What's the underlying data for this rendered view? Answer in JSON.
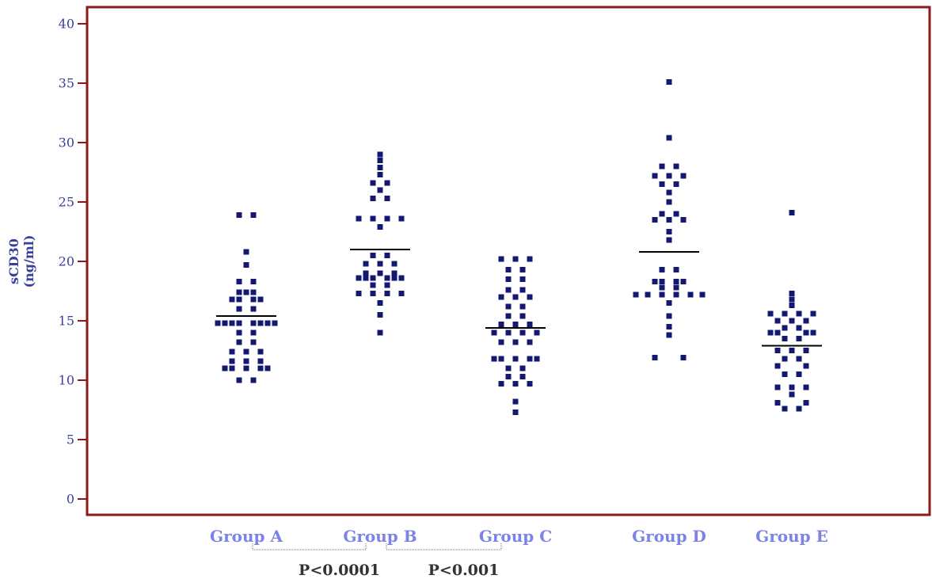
{
  "colors": {
    "frame": "#8b1a1a",
    "point": "#141870",
    "axis_text": "#3a3f9c",
    "category_text": "#7b83e6",
    "bracket": "#888888",
    "pvalue_text": "#333333",
    "median_line": "#000000"
  },
  "chart_data": {
    "type": "scatter",
    "ylabel_lines": [
      "sCD30",
      "(ng/ml)"
    ],
    "ylim": [
      0,
      40
    ],
    "yticks": [
      0,
      5,
      10,
      15,
      20,
      25,
      30,
      35,
      40
    ],
    "categories": [
      "Group A",
      "Group B",
      "Group C",
      "Group D",
      "Group E"
    ],
    "grid": false,
    "series": [
      {
        "category": "Group A",
        "median": 15.4,
        "points": [
          {
            "x": -0.3,
            "y": 23.9
          },
          {
            "x": 0.3,
            "y": 23.9
          },
          {
            "x": 0.0,
            "y": 20.8
          },
          {
            "x": 0.0,
            "y": 19.7
          },
          {
            "x": -0.3,
            "y": 18.3
          },
          {
            "x": 0.3,
            "y": 18.3
          },
          {
            "x": -0.3,
            "y": 17.4
          },
          {
            "x": 0.0,
            "y": 17.4
          },
          {
            "x": 0.3,
            "y": 17.4
          },
          {
            "x": -0.6,
            "y": 16.8
          },
          {
            "x": -0.3,
            "y": 16.8
          },
          {
            "x": 0.3,
            "y": 16.8
          },
          {
            "x": 0.6,
            "y": 16.8
          },
          {
            "x": -0.3,
            "y": 16.0
          },
          {
            "x": 0.3,
            "y": 16.0
          },
          {
            "x": -1.2,
            "y": 14.8
          },
          {
            "x": -0.9,
            "y": 14.8
          },
          {
            "x": -0.6,
            "y": 14.8
          },
          {
            "x": -0.3,
            "y": 14.8
          },
          {
            "x": 0.3,
            "y": 14.8
          },
          {
            "x": 0.6,
            "y": 14.8
          },
          {
            "x": 0.9,
            "y": 14.8
          },
          {
            "x": 1.2,
            "y": 14.8
          },
          {
            "x": -0.3,
            "y": 14.0
          },
          {
            "x": 0.3,
            "y": 14.0
          },
          {
            "x": -0.3,
            "y": 13.2
          },
          {
            "x": 0.3,
            "y": 13.2
          },
          {
            "x": -0.6,
            "y": 12.4
          },
          {
            "x": 0.0,
            "y": 12.4
          },
          {
            "x": 0.6,
            "y": 12.4
          },
          {
            "x": -0.6,
            "y": 11.6
          },
          {
            "x": 0.0,
            "y": 11.6
          },
          {
            "x": 0.6,
            "y": 11.6
          },
          {
            "x": -0.9,
            "y": 11.0
          },
          {
            "x": -0.6,
            "y": 11.0
          },
          {
            "x": 0.0,
            "y": 11.0
          },
          {
            "x": 0.6,
            "y": 11.0
          },
          {
            "x": 0.9,
            "y": 11.0
          },
          {
            "x": -0.3,
            "y": 10.0
          },
          {
            "x": 0.3,
            "y": 10.0
          }
        ]
      },
      {
        "category": "Group B",
        "median": 21.0,
        "points": [
          {
            "x": 0.0,
            "y": 29.0
          },
          {
            "x": 0.0,
            "y": 28.5
          },
          {
            "x": 0.0,
            "y": 27.9
          },
          {
            "x": 0.0,
            "y": 27.3
          },
          {
            "x": -0.3,
            "y": 26.6
          },
          {
            "x": 0.3,
            "y": 26.6
          },
          {
            "x": 0.0,
            "y": 26.0
          },
          {
            "x": -0.3,
            "y": 25.3
          },
          {
            "x": 0.3,
            "y": 25.3
          },
          {
            "x": -0.9,
            "y": 23.6
          },
          {
            "x": -0.3,
            "y": 23.6
          },
          {
            "x": 0.3,
            "y": 23.6
          },
          {
            "x": 0.9,
            "y": 23.6
          },
          {
            "x": 0.0,
            "y": 22.9
          },
          {
            "x": -0.3,
            "y": 20.5
          },
          {
            "x": 0.3,
            "y": 20.5
          },
          {
            "x": -0.6,
            "y": 19.8
          },
          {
            "x": 0.0,
            "y": 19.8
          },
          {
            "x": 0.6,
            "y": 19.8
          },
          {
            "x": -0.6,
            "y": 19.0
          },
          {
            "x": 0.0,
            "y": 19.0
          },
          {
            "x": 0.6,
            "y": 19.0
          },
          {
            "x": -0.9,
            "y": 18.6
          },
          {
            "x": -0.6,
            "y": 18.6
          },
          {
            "x": -0.3,
            "y": 18.6
          },
          {
            "x": 0.3,
            "y": 18.6
          },
          {
            "x": 0.6,
            "y": 18.6
          },
          {
            "x": 0.9,
            "y": 18.6
          },
          {
            "x": -0.3,
            "y": 18.0
          },
          {
            "x": 0.3,
            "y": 18.0
          },
          {
            "x": -0.9,
            "y": 17.3
          },
          {
            "x": -0.3,
            "y": 17.3
          },
          {
            "x": 0.3,
            "y": 17.3
          },
          {
            "x": 0.9,
            "y": 17.3
          },
          {
            "x": 0.0,
            "y": 16.5
          },
          {
            "x": 0.0,
            "y": 15.5
          },
          {
            "x": 0.0,
            "y": 14.0
          }
        ]
      },
      {
        "category": "Group C",
        "median": 14.4,
        "points": [
          {
            "x": -0.6,
            "y": 20.2
          },
          {
            "x": 0.0,
            "y": 20.2
          },
          {
            "x": 0.6,
            "y": 20.2
          },
          {
            "x": -0.3,
            "y": 19.3
          },
          {
            "x": 0.3,
            "y": 19.3
          },
          {
            "x": -0.3,
            "y": 18.5
          },
          {
            "x": 0.3,
            "y": 18.5
          },
          {
            "x": -0.3,
            "y": 17.6
          },
          {
            "x": 0.3,
            "y": 17.6
          },
          {
            "x": -0.6,
            "y": 17.0
          },
          {
            "x": 0.0,
            "y": 17.0
          },
          {
            "x": 0.6,
            "y": 17.0
          },
          {
            "x": -0.3,
            "y": 16.2
          },
          {
            "x": 0.3,
            "y": 16.2
          },
          {
            "x": -0.3,
            "y": 15.4
          },
          {
            "x": 0.3,
            "y": 15.4
          },
          {
            "x": -0.6,
            "y": 14.7
          },
          {
            "x": 0.0,
            "y": 14.7
          },
          {
            "x": 0.6,
            "y": 14.7
          },
          {
            "x": -0.9,
            "y": 14.0
          },
          {
            "x": -0.3,
            "y": 14.0
          },
          {
            "x": 0.3,
            "y": 14.0
          },
          {
            "x": 0.9,
            "y": 14.0
          },
          {
            "x": -0.6,
            "y": 13.2
          },
          {
            "x": 0.0,
            "y": 13.2
          },
          {
            "x": 0.6,
            "y": 13.2
          },
          {
            "x": -0.9,
            "y": 11.8
          },
          {
            "x": -0.6,
            "y": 11.8
          },
          {
            "x": 0.0,
            "y": 11.8
          },
          {
            "x": 0.6,
            "y": 11.8
          },
          {
            "x": 0.9,
            "y": 11.8
          },
          {
            "x": -0.3,
            "y": 11.0
          },
          {
            "x": 0.3,
            "y": 11.0
          },
          {
            "x": -0.3,
            "y": 10.3
          },
          {
            "x": 0.3,
            "y": 10.3
          },
          {
            "x": -0.6,
            "y": 9.7
          },
          {
            "x": 0.0,
            "y": 9.7
          },
          {
            "x": 0.6,
            "y": 9.7
          },
          {
            "x": 0.0,
            "y": 8.2
          },
          {
            "x": 0.0,
            "y": 7.3
          }
        ]
      },
      {
        "category": "Group D",
        "median": 20.8,
        "points": [
          {
            "x": 0.0,
            "y": 35.1
          },
          {
            "x": 0.0,
            "y": 30.4
          },
          {
            "x": -0.3,
            "y": 28.0
          },
          {
            "x": 0.3,
            "y": 28.0
          },
          {
            "x": -0.6,
            "y": 27.2
          },
          {
            "x": 0.0,
            "y": 27.2
          },
          {
            "x": 0.6,
            "y": 27.2
          },
          {
            "x": -0.3,
            "y": 26.5
          },
          {
            "x": 0.3,
            "y": 26.5
          },
          {
            "x": 0.0,
            "y": 25.8
          },
          {
            "x": 0.0,
            "y": 25.0
          },
          {
            "x": -0.3,
            "y": 24.0
          },
          {
            "x": 0.3,
            "y": 24.0
          },
          {
            "x": -0.6,
            "y": 23.5
          },
          {
            "x": 0.0,
            "y": 23.5
          },
          {
            "x": 0.6,
            "y": 23.5
          },
          {
            "x": 0.0,
            "y": 22.5
          },
          {
            "x": 0.0,
            "y": 21.8
          },
          {
            "x": -0.3,
            "y": 19.3
          },
          {
            "x": 0.3,
            "y": 19.3
          },
          {
            "x": -0.6,
            "y": 18.3
          },
          {
            "x": -0.3,
            "y": 18.3
          },
          {
            "x": 0.3,
            "y": 18.3
          },
          {
            "x": 0.6,
            "y": 18.3
          },
          {
            "x": -0.3,
            "y": 17.8
          },
          {
            "x": 0.3,
            "y": 17.8
          },
          {
            "x": -1.4,
            "y": 17.2
          },
          {
            "x": -0.9,
            "y": 17.2
          },
          {
            "x": -0.3,
            "y": 17.2
          },
          {
            "x": 0.3,
            "y": 17.2
          },
          {
            "x": 0.9,
            "y": 17.2
          },
          {
            "x": 1.4,
            "y": 17.2
          },
          {
            "x": 0.0,
            "y": 16.5
          },
          {
            "x": 0.0,
            "y": 15.4
          },
          {
            "x": 0.0,
            "y": 14.5
          },
          {
            "x": 0.0,
            "y": 13.8
          },
          {
            "x": -0.6,
            "y": 11.9
          },
          {
            "x": 0.6,
            "y": 11.9
          }
        ]
      },
      {
        "category": "Group E",
        "median": 12.9,
        "points": [
          {
            "x": 0.0,
            "y": 24.1
          },
          {
            "x": 0.0,
            "y": 17.3
          },
          {
            "x": 0.0,
            "y": 16.8
          },
          {
            "x": 0.0,
            "y": 16.3
          },
          {
            "x": -0.9,
            "y": 15.6
          },
          {
            "x": -0.3,
            "y": 15.6
          },
          {
            "x": 0.3,
            "y": 15.6
          },
          {
            "x": 0.9,
            "y": 15.6
          },
          {
            "x": -0.6,
            "y": 15.0
          },
          {
            "x": 0.0,
            "y": 15.0
          },
          {
            "x": 0.6,
            "y": 15.0
          },
          {
            "x": -0.3,
            "y": 14.4
          },
          {
            "x": 0.3,
            "y": 14.4
          },
          {
            "x": -0.9,
            "y": 14.0
          },
          {
            "x": -0.6,
            "y": 14.0
          },
          {
            "x": 0.6,
            "y": 14.0
          },
          {
            "x": 0.9,
            "y": 14.0
          },
          {
            "x": -0.3,
            "y": 13.5
          },
          {
            "x": 0.3,
            "y": 13.5
          },
          {
            "x": -0.6,
            "y": 12.5
          },
          {
            "x": 0.0,
            "y": 12.5
          },
          {
            "x": 0.6,
            "y": 12.5
          },
          {
            "x": -0.3,
            "y": 11.8
          },
          {
            "x": 0.3,
            "y": 11.8
          },
          {
            "x": -0.6,
            "y": 11.2
          },
          {
            "x": 0.6,
            "y": 11.2
          },
          {
            "x": -0.3,
            "y": 10.5
          },
          {
            "x": 0.3,
            "y": 10.5
          },
          {
            "x": -0.6,
            "y": 9.4
          },
          {
            "x": 0.0,
            "y": 9.4
          },
          {
            "x": 0.6,
            "y": 9.4
          },
          {
            "x": 0.0,
            "y": 8.8
          },
          {
            "x": -0.6,
            "y": 8.1
          },
          {
            "x": 0.6,
            "y": 8.1
          },
          {
            "x": -0.3,
            "y": 7.6
          },
          {
            "x": 0.3,
            "y": 7.6
          }
        ]
      }
    ],
    "comparisons": [
      {
        "groups": [
          "Group A",
          "Group B"
        ],
        "label": "P<0.0001"
      },
      {
        "groups": [
          "Group B",
          "Group C"
        ],
        "label": "P<0.001"
      }
    ]
  }
}
